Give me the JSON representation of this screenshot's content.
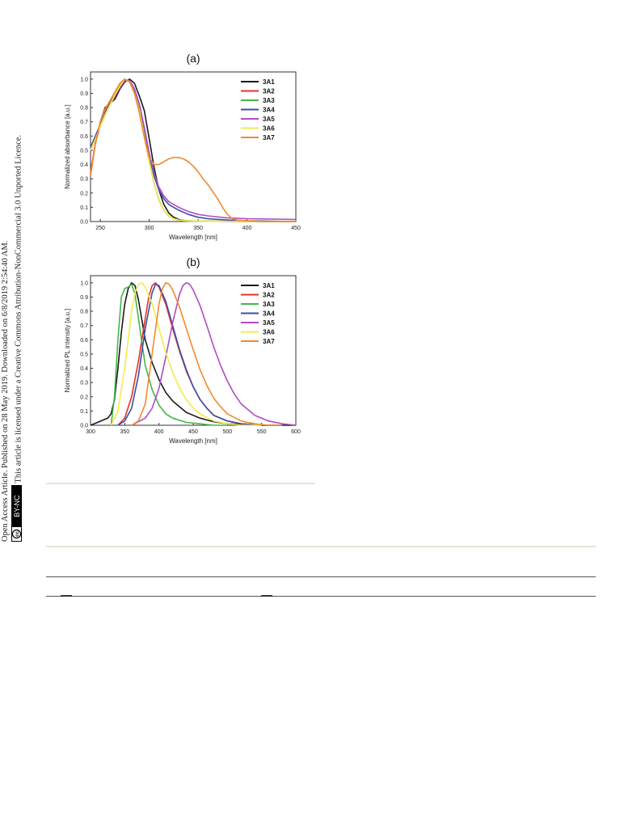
{
  "sidebar": {
    "line1": "Open Access Article. Published on 28 May 2019. Downloaded on 6/8/2019 2:54:40 AM.",
    "line2": "This article is licensed under a Creative Commons Attribution-NonCommercial 3.0 Unported Licence.",
    "badge": "BY-NC"
  },
  "colors": {
    "3A1": "#1a1a1a",
    "3A2": "#e8312a",
    "3A3": "#45b649",
    "3A4": "#3a4ea8",
    "3A5": "#b04cc4",
    "3A6": "#f2ec4b",
    "3A7": "#f28a2e"
  },
  "chart_data": [
    {
      "type": "line",
      "panel_label": "(a)",
      "xlabel": "Wavelength [nm]",
      "ylabel": "Normalized absorbance [a.u.]",
      "xlim": [
        240,
        450
      ],
      "ylim": [
        0,
        1.05
      ],
      "xticks": [
        250,
        300,
        350,
        400,
        450
      ],
      "yticks": [
        0.0,
        0.1,
        0.2,
        0.3,
        0.4,
        0.5,
        0.6,
        0.7,
        0.8,
        0.9,
        1.0
      ],
      "legend_position": "top-right",
      "series": [
        {
          "name": "3A1",
          "x": [
            240,
            245,
            250,
            255,
            260,
            265,
            270,
            275,
            280,
            285,
            290,
            295,
            300,
            305,
            310,
            315,
            320,
            325,
            330,
            335,
            340,
            350,
            360,
            380,
            400,
            450
          ],
          "y": [
            0.33,
            0.55,
            0.7,
            0.8,
            0.83,
            0.86,
            0.93,
            0.98,
            1.0,
            0.97,
            0.88,
            0.78,
            0.58,
            0.38,
            0.22,
            0.12,
            0.06,
            0.03,
            0.015,
            0.008,
            0.005,
            0.003,
            0.002,
            0.001,
            0.0,
            0.0
          ]
        },
        {
          "name": "3A2",
          "x": [
            240,
            245,
            250,
            255,
            260,
            265,
            270,
            275,
            280,
            285,
            290,
            295,
            300,
            305,
            310,
            315,
            320,
            325,
            330,
            340,
            360,
            400,
            450
          ],
          "y": [
            0.34,
            0.55,
            0.68,
            0.77,
            0.84,
            0.9,
            0.96,
            1.0,
            0.98,
            0.9,
            0.78,
            0.6,
            0.42,
            0.27,
            0.15,
            0.08,
            0.04,
            0.02,
            0.01,
            0.004,
            0.002,
            0.0,
            0.0
          ]
        },
        {
          "name": "3A3",
          "x": [
            240,
            245,
            250,
            255,
            260,
            265,
            270,
            275,
            280,
            285,
            290,
            295,
            300,
            305,
            310,
            315,
            320,
            325,
            330,
            340,
            360,
            400,
            450
          ],
          "y": [
            0.52,
            0.6,
            0.68,
            0.76,
            0.83,
            0.89,
            0.95,
            0.99,
            0.99,
            0.92,
            0.8,
            0.62,
            0.43,
            0.27,
            0.15,
            0.08,
            0.04,
            0.02,
            0.01,
            0.004,
            0.002,
            0.0,
            0.0
          ]
        },
        {
          "name": "3A4",
          "x": [
            240,
            245,
            250,
            255,
            260,
            265,
            270,
            275,
            280,
            285,
            290,
            295,
            300,
            305,
            310,
            315,
            320,
            325,
            330,
            340,
            350,
            360,
            380,
            400,
            450
          ],
          "y": [
            0.52,
            0.6,
            0.68,
            0.76,
            0.83,
            0.89,
            0.95,
            0.99,
            0.99,
            0.93,
            0.82,
            0.66,
            0.47,
            0.32,
            0.22,
            0.16,
            0.12,
            0.1,
            0.08,
            0.05,
            0.03,
            0.02,
            0.01,
            0.005,
            0.0
          ]
        },
        {
          "name": "3A5",
          "x": [
            240,
            245,
            250,
            255,
            260,
            265,
            270,
            275,
            280,
            285,
            290,
            295,
            300,
            305,
            310,
            315,
            320,
            325,
            330,
            340,
            350,
            360,
            380,
            400,
            450
          ],
          "y": [
            0.5,
            0.58,
            0.67,
            0.75,
            0.82,
            0.88,
            0.94,
            0.99,
            0.99,
            0.93,
            0.82,
            0.66,
            0.48,
            0.34,
            0.24,
            0.18,
            0.14,
            0.12,
            0.1,
            0.07,
            0.05,
            0.04,
            0.025,
            0.02,
            0.015
          ]
        },
        {
          "name": "3A6",
          "x": [
            240,
            245,
            250,
            255,
            260,
            265,
            270,
            275,
            280,
            285,
            290,
            295,
            300,
            305,
            310,
            315,
            320,
            325,
            330,
            340,
            360,
            400,
            450
          ],
          "y": [
            0.5,
            0.58,
            0.67,
            0.75,
            0.82,
            0.89,
            0.95,
            1.0,
            0.98,
            0.9,
            0.78,
            0.6,
            0.42,
            0.27,
            0.15,
            0.08,
            0.04,
            0.02,
            0.01,
            0.004,
            0.002,
            0.0,
            0.0
          ]
        },
        {
          "name": "3A7",
          "x": [
            240,
            245,
            250,
            255,
            260,
            265,
            270,
            275,
            280,
            285,
            290,
            295,
            300,
            305,
            310,
            315,
            320,
            325,
            330,
            335,
            340,
            345,
            350,
            355,
            360,
            365,
            370,
            375,
            380,
            385,
            390,
            400,
            420,
            450
          ],
          "y": [
            0.32,
            0.55,
            0.7,
            0.79,
            0.85,
            0.91,
            0.97,
            1.0,
            0.98,
            0.9,
            0.76,
            0.59,
            0.45,
            0.4,
            0.4,
            0.42,
            0.44,
            0.45,
            0.45,
            0.44,
            0.42,
            0.39,
            0.35,
            0.3,
            0.26,
            0.21,
            0.16,
            0.1,
            0.05,
            0.02,
            0.01,
            0.005,
            0.0,
            0.0
          ]
        }
      ]
    },
    {
      "type": "line",
      "panel_label": "(b)",
      "xlabel": "Wavelength [nm]",
      "ylabel": "Normalized PL intensity [a.u.]",
      "xlim": [
        300,
        600
      ],
      "ylim": [
        0,
        1.05
      ],
      "xticks": [
        300,
        350,
        400,
        450,
        500,
        550,
        600
      ],
      "yticks": [
        0.0,
        0.1,
        0.2,
        0.3,
        0.4,
        0.5,
        0.6,
        0.7,
        0.8,
        0.9,
        1.0
      ],
      "legend_position": "top-right",
      "series": [
        {
          "name": "3A1",
          "x": [
            300,
            310,
            320,
            325,
            330,
            335,
            340,
            345,
            350,
            355,
            360,
            365,
            370,
            375,
            380,
            390,
            400,
            410,
            420,
            430,
            440,
            450,
            460,
            480,
            500,
            520,
            550,
            600
          ],
          "y": [
            0.0,
            0.02,
            0.04,
            0.05,
            0.08,
            0.18,
            0.4,
            0.65,
            0.85,
            0.96,
            1.0,
            0.98,
            0.88,
            0.74,
            0.6,
            0.44,
            0.32,
            0.23,
            0.17,
            0.13,
            0.09,
            0.07,
            0.05,
            0.025,
            0.01,
            0.005,
            0.0,
            0.0
          ]
        },
        {
          "name": "3A2",
          "x": [
            340,
            350,
            360,
            370,
            380,
            385,
            390,
            395,
            400,
            410,
            420,
            430,
            440,
            450,
            460,
            470,
            480,
            500,
            520,
            550
          ],
          "y": [
            0.0,
            0.05,
            0.2,
            0.45,
            0.75,
            0.9,
            0.98,
            1.0,
            0.97,
            0.85,
            0.68,
            0.52,
            0.38,
            0.27,
            0.18,
            0.12,
            0.07,
            0.03,
            0.01,
            0.0
          ]
        },
        {
          "name": "3A3",
          "x": [
            330,
            335,
            340,
            345,
            350,
            355,
            360,
            365,
            370,
            375,
            380,
            390,
            400,
            410,
            420,
            440,
            460,
            480,
            500
          ],
          "y": [
            0.0,
            0.2,
            0.6,
            0.9,
            0.96,
            0.97,
            0.99,
            0.92,
            0.75,
            0.58,
            0.42,
            0.25,
            0.14,
            0.08,
            0.05,
            0.02,
            0.01,
            0.0,
            0.0
          ]
        },
        {
          "name": "3A4",
          "x": [
            340,
            350,
            360,
            370,
            380,
            390,
            395,
            400,
            410,
            420,
            430,
            440,
            450,
            460,
            470,
            480,
            500,
            520,
            550
          ],
          "y": [
            0.0,
            0.03,
            0.12,
            0.35,
            0.68,
            0.93,
            0.99,
            0.98,
            0.87,
            0.7,
            0.53,
            0.39,
            0.27,
            0.18,
            0.12,
            0.07,
            0.03,
            0.01,
            0.0
          ]
        },
        {
          "name": "3A5",
          "x": [
            360,
            380,
            390,
            400,
            410,
            420,
            430,
            435,
            440,
            445,
            450,
            460,
            470,
            480,
            490,
            500,
            510,
            520,
            540,
            560,
            580,
            600
          ],
          "y": [
            0.0,
            0.05,
            0.12,
            0.26,
            0.48,
            0.72,
            0.92,
            0.98,
            1.0,
            0.99,
            0.95,
            0.84,
            0.7,
            0.55,
            0.42,
            0.31,
            0.22,
            0.15,
            0.07,
            0.03,
            0.01,
            0.0
          ]
        },
        {
          "name": "3A6",
          "x": [
            330,
            340,
            350,
            355,
            360,
            365,
            370,
            375,
            380,
            390,
            400,
            410,
            420,
            430,
            440,
            450,
            460,
            480,
            500,
            520,
            550
          ],
          "y": [
            0.0,
            0.1,
            0.4,
            0.6,
            0.8,
            0.93,
            0.99,
            1.0,
            0.97,
            0.85,
            0.68,
            0.51,
            0.37,
            0.26,
            0.18,
            0.12,
            0.08,
            0.03,
            0.01,
            0.0,
            0.0
          ]
        },
        {
          "name": "3A7",
          "x": [
            360,
            370,
            380,
            390,
            400,
            405,
            410,
            415,
            420,
            430,
            440,
            450,
            460,
            470,
            480,
            490,
            500,
            520,
            540,
            560,
            580
          ],
          "y": [
            0.0,
            0.03,
            0.15,
            0.5,
            0.85,
            0.96,
            1.0,
            0.99,
            0.95,
            0.83,
            0.68,
            0.53,
            0.39,
            0.28,
            0.19,
            0.13,
            0.08,
            0.03,
            0.01,
            0.0,
            0.0
          ]
        }
      ]
    }
  ]
}
